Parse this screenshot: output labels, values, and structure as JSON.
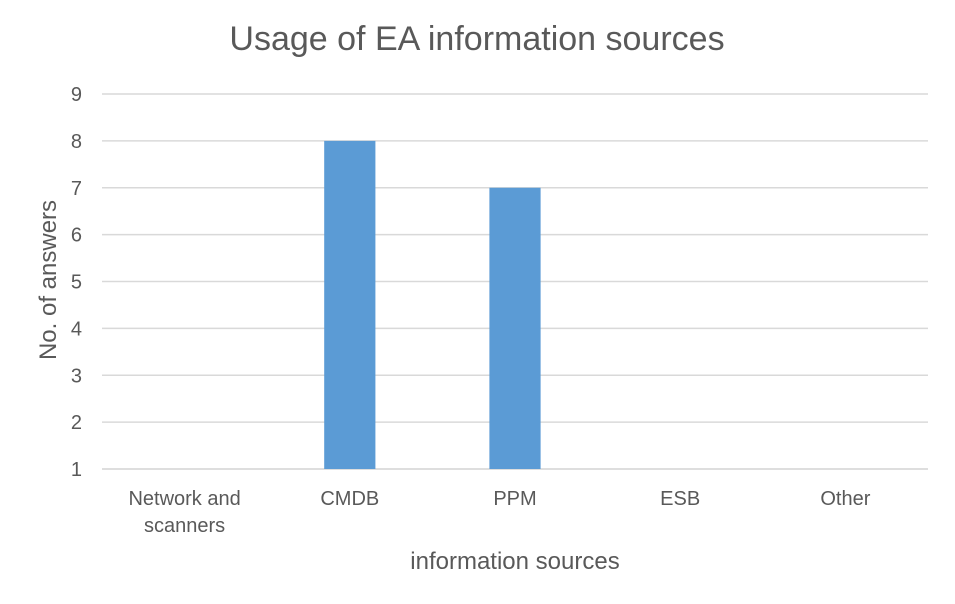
{
  "chart_data": {
    "type": "bar",
    "title": "Usage of EA information sources",
    "xlabel": "information sources",
    "ylabel": "No. of answers",
    "categories": [
      [
        "Network and",
        "scanners"
      ],
      [
        "CMDB"
      ],
      [
        "PPM"
      ],
      [
        "ESB"
      ],
      [
        "Other"
      ]
    ],
    "values": [
      1,
      8,
      7,
      1,
      1
    ],
    "ylim": [
      1,
      9
    ],
    "yticks": [
      1,
      2,
      3,
      4,
      5,
      6,
      7,
      8,
      9
    ],
    "grid": true,
    "bar_color": "#5b9bd5"
  }
}
